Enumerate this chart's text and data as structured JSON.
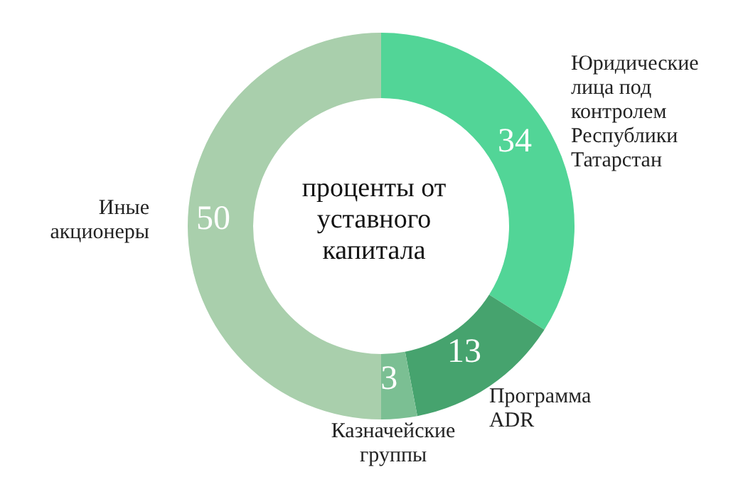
{
  "chart_data": {
    "type": "donut",
    "title": "проценты от уставного капитала",
    "categories": [
      "Юридические лица под контролем Республики Татарстан",
      "Программа ADR",
      "Казначейские группы",
      "Иные акционеры"
    ],
    "values": [
      34,
      13,
      3,
      50
    ],
    "colors": [
      "#52d597",
      "#46a36e",
      "#7bbf93",
      "#a9cfac"
    ],
    "data_labels": true
  }
}
